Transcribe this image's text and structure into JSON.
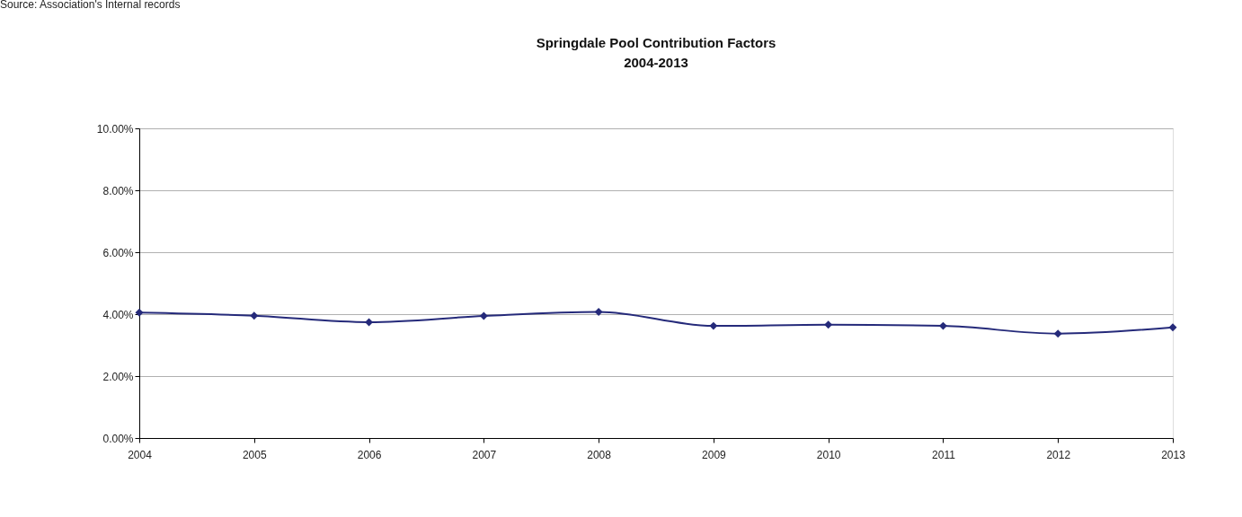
{
  "chart_data": {
    "type": "line",
    "title": "Springdale Pool Contribution Factors",
    "subtitle": "2004-2013",
    "annotations": [
      "Source: Association's Internal records"
    ],
    "x": [
      2004,
      2005,
      2006,
      2007,
      2008,
      2009,
      2010,
      2011,
      2012,
      2013
    ],
    "series": [
      {
        "color": "#252a7a",
        "values": [
          4.05,
          3.95,
          3.74,
          3.94,
          4.07,
          3.62,
          3.66,
          3.62,
          3.37,
          3.57
        ]
      }
    ],
    "xlim": [
      2004,
      2013
    ],
    "xticks": [
      2004,
      2005,
      2006,
      2007,
      2008,
      2009,
      2010,
      2011,
      2012,
      2013
    ],
    "ylim": [
      0,
      10
    ],
    "yticks": [
      {
        "value": 0,
        "label": "0.00%"
      },
      {
        "value": 2,
        "label": "2.00%"
      },
      {
        "value": 4,
        "label": "4.00%"
      },
      {
        "value": 6,
        "label": "6.00%"
      },
      {
        "value": 8,
        "label": "8.00%"
      },
      {
        "value": 10,
        "label": "10.00%"
      }
    ],
    "grid": "y",
    "marker": "diamond",
    "line_style": "solid"
  }
}
